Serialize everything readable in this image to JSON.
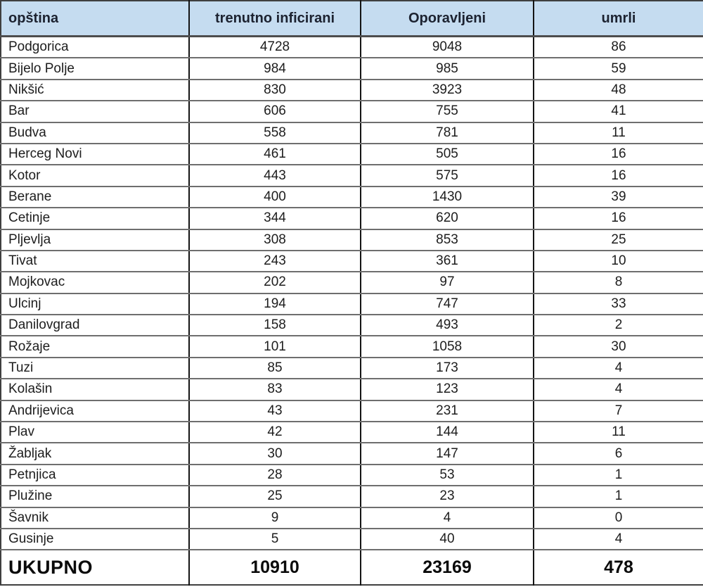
{
  "chart_data": {
    "type": "table",
    "columns": [
      "opština",
      "trenutno inficirani",
      "Oporavljeni",
      "umrli"
    ],
    "rows": [
      [
        "Podgorica",
        4728,
        9048,
        86
      ],
      [
        "Bijelo Polje",
        984,
        985,
        59
      ],
      [
        "Nikšić",
        830,
        3923,
        48
      ],
      [
        "Bar",
        606,
        755,
        41
      ],
      [
        "Budva",
        558,
        781,
        11
      ],
      [
        "Herceg Novi",
        461,
        505,
        16
      ],
      [
        "Kotor",
        443,
        575,
        16
      ],
      [
        "Berane",
        400,
        1430,
        39
      ],
      [
        "Cetinje",
        344,
        620,
        16
      ],
      [
        "Pljevlja",
        308,
        853,
        25
      ],
      [
        "Tivat",
        243,
        361,
        10
      ],
      [
        "Mojkovac",
        202,
        97,
        8
      ],
      [
        "Ulcinj",
        194,
        747,
        33
      ],
      [
        "Danilovgrad",
        158,
        493,
        2
      ],
      [
        "Rožaje",
        101,
        1058,
        30
      ],
      [
        "Tuzi",
        85,
        173,
        4
      ],
      [
        "Kolašin",
        83,
        123,
        4
      ],
      [
        "Andrijevica",
        43,
        231,
        7
      ],
      [
        "Plav",
        42,
        144,
        11
      ],
      [
        "Žabljak",
        30,
        147,
        6
      ],
      [
        "Petnjica",
        28,
        53,
        1
      ],
      [
        "Plužine",
        25,
        23,
        1
      ],
      [
        "Šavnik",
        9,
        4,
        0
      ],
      [
        "Gusinje",
        5,
        40,
        4
      ]
    ],
    "total_row": [
      "UKUPNO",
      10910,
      23169,
      478
    ],
    "title": "",
    "layout_hints": {
      "header_bg": "#c5dcf0",
      "grid": true,
      "numeric_alignment": "center",
      "first_column_alignment": "left"
    }
  }
}
